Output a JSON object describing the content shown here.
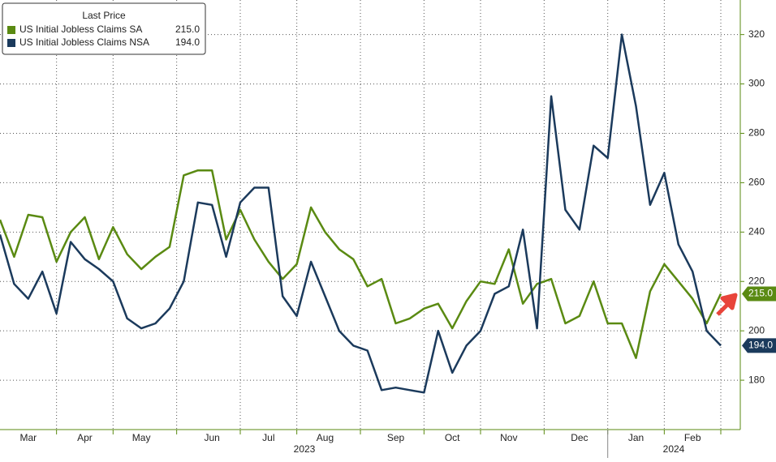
{
  "chart_data": {
    "type": "line",
    "legend_title": "Last Price",
    "categories": [
      null,
      null,
      "Mar",
      null,
      null,
      null,
      "Apr",
      null,
      null,
      null,
      "May",
      null,
      null,
      null,
      null,
      "Jun",
      null,
      null,
      null,
      "Jul",
      null,
      null,
      null,
      "Aug",
      null,
      null,
      null,
      null,
      "Sep",
      null,
      null,
      null,
      "Oct",
      null,
      null,
      null,
      "Nov",
      null,
      null,
      null,
      null,
      "Dec",
      null,
      null,
      null,
      "Jan",
      null,
      null,
      null,
      "Feb",
      null,
      null
    ],
    "year_labels": [
      "2023",
      "2024"
    ],
    "series": [
      {
        "name": "US Initial Jobless Claims SA",
        "color": "#5a8a12",
        "last_label": "215.0",
        "values": [
          245,
          230,
          247,
          246,
          228,
          240,
          246,
          229,
          242,
          231,
          225,
          230,
          234,
          263,
          265,
          265,
          237,
          249,
          237,
          228,
          221,
          227,
          250,
          240,
          233,
          229,
          218,
          221,
          203,
          205,
          209,
          211,
          201,
          212,
          220,
          219,
          233,
          211,
          219,
          221,
          203,
          206,
          220,
          203,
          203,
          189,
          216,
          227,
          220,
          213,
          203,
          215
        ]
      },
      {
        "name": "US Initial Jobless Claims NSA",
        "color": "#1b3a5c",
        "last_label": "194.0",
        "values": [
          239,
          219,
          213,
          224,
          207,
          236,
          229,
          225,
          220,
          205,
          201,
          203,
          209,
          220,
          252,
          251,
          230,
          252,
          258,
          258,
          214,
          206,
          228,
          214,
          200,
          194,
          192,
          176,
          177,
          176,
          175,
          200,
          183,
          194,
          200,
          215,
          218,
          241,
          201,
          295,
          249,
          241,
          275,
          270,
          320,
          291,
          251,
          264,
          235,
          224,
          200,
          194
        ]
      }
    ],
    "ylim": [
      160,
      334
    ],
    "yticks": [
      180,
      200,
      220,
      240,
      260,
      280,
      300,
      320
    ],
    "grid": true
  }
}
